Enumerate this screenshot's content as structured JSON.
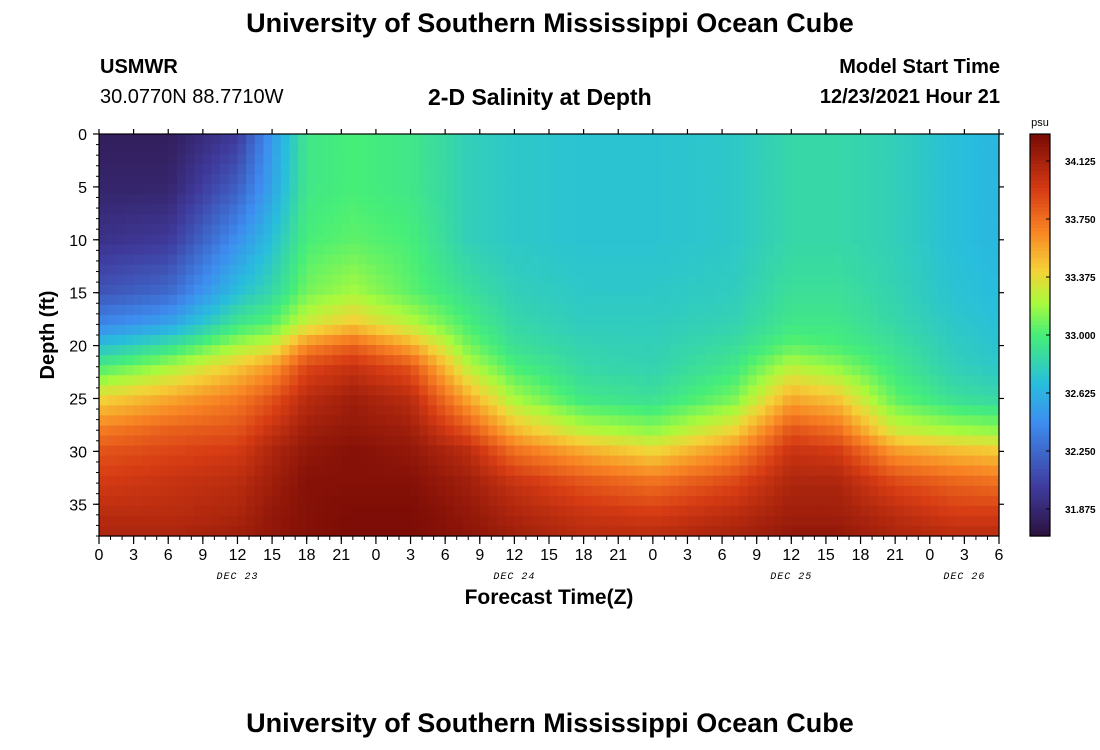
{
  "page": {
    "title": "University of Southern Mississippi Ocean Cube",
    "footer_title": "University of Southern Mississippi Ocean Cube",
    "station": "USMWR",
    "coordinates": "30.0770N  88.7710W",
    "plot_title": "2-D Salinity at Depth",
    "model_label": "Model Start Time",
    "model_time": "12/23/2021 Hour 21"
  },
  "chart_data": {
    "type": "heatmap",
    "xlabel": "Forecast Time(Z)",
    "ylabel": "Depth (ft)",
    "x_tick_labels": [
      "0",
      "3",
      "6",
      "9",
      "12",
      "15",
      "18",
      "21",
      "0",
      "3",
      "6",
      "9",
      "12",
      "15",
      "18",
      "21",
      "0",
      "3",
      "6",
      "9",
      "12",
      "15",
      "18",
      "21",
      "0",
      "3",
      "6"
    ],
    "date_labels": [
      "DEC 23",
      "DEC 24",
      "DEC 25",
      "DEC 26"
    ],
    "x_range_hours": [
      0,
      78
    ],
    "y_ticks": [
      0,
      5,
      10,
      15,
      20,
      25,
      30,
      35
    ],
    "ylim": [
      38,
      0
    ],
    "colorbar": {
      "unit": "psu",
      "ticks": [
        "34.125",
        "33.750",
        "33.375",
        "33.000",
        "32.625",
        "32.250",
        "31.875"
      ],
      "range": [
        31.7,
        34.3
      ]
    },
    "salinity_profiles": {
      "depths_ft": [
        0,
        5,
        10,
        15,
        18,
        20,
        22,
        25,
        28,
        30,
        33,
        36,
        38
      ],
      "columns": [
        {
          "hour": 0,
          "values": [
            31.8,
            31.85,
            31.95,
            32.15,
            32.4,
            32.7,
            33.0,
            33.4,
            33.7,
            33.85,
            33.95,
            34.05,
            34.1
          ]
        },
        {
          "hour": 6,
          "values": [
            31.8,
            31.85,
            32.0,
            32.25,
            32.55,
            32.9,
            33.2,
            33.55,
            33.8,
            33.9,
            34.0,
            34.05,
            34.1
          ]
        },
        {
          "hour": 12,
          "values": [
            32.0,
            32.2,
            32.45,
            32.7,
            32.95,
            33.2,
            33.45,
            33.7,
            33.85,
            33.95,
            34.05,
            34.1,
            34.15
          ]
        },
        {
          "hour": 15,
          "values": [
            32.5,
            32.55,
            32.7,
            32.85,
            33.05,
            33.3,
            33.6,
            33.85,
            34.0,
            34.1,
            34.15,
            34.2,
            34.2
          ]
        },
        {
          "hour": 18,
          "values": [
            32.95,
            32.95,
            33.0,
            33.1,
            33.3,
            33.65,
            33.9,
            34.05,
            34.15,
            34.2,
            34.25,
            34.25,
            34.25
          ]
        },
        {
          "hour": 22,
          "values": [
            33.0,
            33.0,
            33.05,
            33.2,
            33.45,
            33.8,
            34.0,
            34.15,
            34.2,
            34.25,
            34.25,
            34.28,
            34.28
          ]
        },
        {
          "hour": 27,
          "values": [
            32.95,
            32.95,
            33.0,
            33.05,
            33.25,
            33.55,
            33.85,
            34.05,
            34.15,
            34.2,
            34.25,
            34.28,
            34.28
          ]
        },
        {
          "hour": 32,
          "values": [
            32.8,
            32.8,
            32.8,
            32.9,
            33.0,
            33.1,
            33.25,
            33.55,
            33.85,
            34.05,
            34.15,
            34.2,
            34.22
          ]
        },
        {
          "hour": 36,
          "values": [
            32.75,
            32.75,
            32.75,
            32.8,
            32.85,
            32.9,
            33.0,
            33.2,
            33.5,
            33.75,
            34.0,
            34.1,
            34.15
          ]
        },
        {
          "hour": 42,
          "values": [
            32.72,
            32.72,
            32.72,
            32.75,
            32.78,
            32.82,
            32.85,
            32.95,
            33.25,
            33.55,
            33.85,
            34.0,
            34.05
          ]
        },
        {
          "hour": 48,
          "values": [
            32.72,
            32.72,
            32.72,
            32.75,
            32.78,
            32.8,
            32.82,
            32.9,
            33.15,
            33.4,
            33.75,
            33.95,
            34.05
          ]
        },
        {
          "hour": 55,
          "values": [
            32.75,
            32.75,
            32.75,
            32.78,
            32.82,
            32.88,
            32.95,
            33.1,
            33.4,
            33.65,
            33.9,
            34.05,
            34.12
          ]
        },
        {
          "hour": 60,
          "values": [
            32.85,
            32.85,
            32.85,
            32.9,
            32.95,
            33.05,
            33.25,
            33.55,
            33.85,
            34.0,
            34.1,
            34.15,
            34.2
          ]
        },
        {
          "hour": 64,
          "values": [
            32.85,
            32.85,
            32.85,
            32.9,
            32.95,
            33.0,
            33.15,
            33.45,
            33.75,
            33.95,
            34.1,
            34.15,
            34.2
          ]
        },
        {
          "hour": 69,
          "values": [
            32.8,
            32.8,
            32.8,
            32.82,
            32.85,
            32.9,
            32.95,
            33.05,
            33.3,
            33.6,
            33.9,
            34.05,
            34.1
          ]
        },
        {
          "hour": 74,
          "values": [
            32.7,
            32.7,
            32.7,
            32.72,
            32.75,
            32.78,
            32.8,
            32.9,
            33.2,
            33.5,
            33.8,
            33.95,
            34.05
          ]
        },
        {
          "hour": 78,
          "values": [
            32.65,
            32.65,
            32.65,
            32.68,
            32.7,
            32.72,
            32.75,
            32.85,
            33.15,
            33.45,
            33.75,
            33.95,
            34.05
          ]
        }
      ]
    }
  }
}
